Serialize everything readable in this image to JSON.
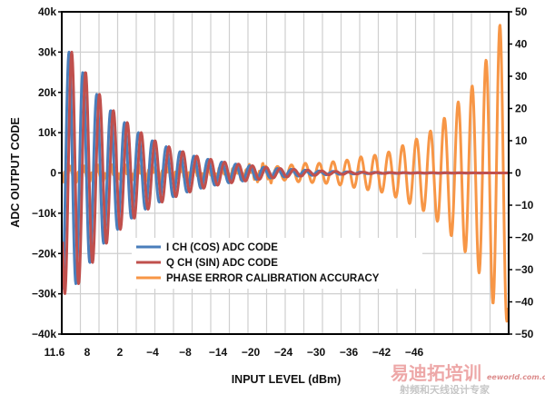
{
  "chart_data": {
    "type": "line",
    "xlabel": "INPUT LEVEL (dBm)",
    "ylabel": "ADC OUTPUT CODE",
    "x_tick_labels": [
      "11.6",
      "8",
      "2",
      "−4",
      "−8",
      "−14",
      "−20",
      "−24",
      "−30",
      "−36",
      "−42",
      "−46"
    ],
    "y_left": {
      "ylim": [
        -40000,
        40000
      ],
      "tick_labels": [
        "40k",
        "30k",
        "20k",
        "10k",
        "0",
        "−10k",
        "−20k",
        "−30k",
        "−40k"
      ]
    },
    "y_right": {
      "ylim": [
        -50,
        50
      ],
      "tick_labels": [
        "50",
        "40",
        "30",
        "20",
        "10",
        "0",
        "−10",
        "−20",
        "−30",
        "−40",
        "−50"
      ]
    },
    "grid": true,
    "legend_position": "bottom-center",
    "series": [
      {
        "name": "I CH (COS) ADC CODE",
        "color": "#4a7ebb",
        "axis": "left",
        "cycle_peak_amplitudes": [
          30000,
          25000,
          19500,
          15500,
          12500,
          10000,
          8000,
          6500,
          5300,
          4200,
          3400,
          2700,
          2200,
          1800,
          1400,
          1100,
          900,
          700,
          500,
          400,
          300,
          200,
          150,
          100,
          80,
          60,
          50,
          40,
          30,
          20,
          10,
          0
        ]
      },
      {
        "name": "Q CH (SIN) ADC CODE",
        "color": "#c0504d",
        "axis": "left",
        "cycle_peak_amplitudes": [
          30000,
          25000,
          19500,
          15500,
          12500,
          10000,
          8000,
          6500,
          5300,
          4200,
          3400,
          2700,
          2200,
          1800,
          1400,
          1100,
          900,
          700,
          500,
          400,
          300,
          200,
          150,
          100,
          80,
          60,
          50,
          40,
          30,
          20,
          10,
          0
        ]
      },
      {
        "name": "PHASE ERROR CALIBRATION ACCURACY",
        "color": "#f79646",
        "axis": "right",
        "cycle_peak_amplitudes": [
          2,
          1.5,
          1.5,
          1.5,
          1.5,
          1.5,
          1.5,
          1.5,
          1.5,
          1.5,
          1.5,
          1.5,
          1.5,
          1.5,
          2,
          2,
          2.5,
          3,
          3,
          3.5,
          4,
          5,
          5.5,
          6.5,
          8.5,
          10.5,
          13,
          17,
          22,
          27,
          35,
          46
        ]
      }
    ]
  },
  "watermark": {
    "main": "易迪拓培训",
    "site": "eeworld.com.cn",
    "sub": "射频和天线设计专家"
  }
}
